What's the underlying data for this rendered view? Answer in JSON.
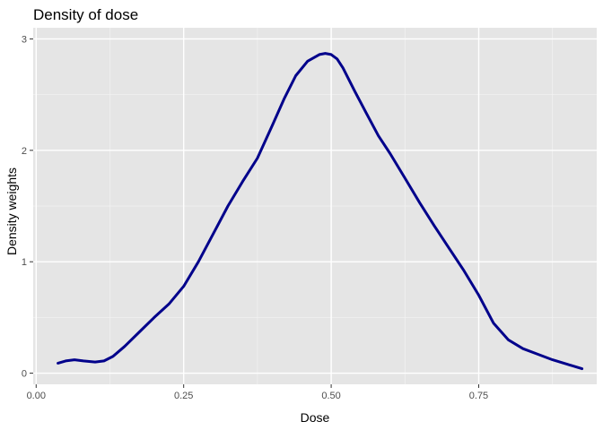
{
  "chart_data": {
    "type": "line",
    "title": "Density of dose",
    "xlabel": "Dose",
    "ylabel": "Density weights",
    "xlim": [
      -0.005,
      0.95
    ],
    "ylim": [
      -0.1,
      3.1
    ],
    "x_ticks": [
      0.0,
      0.25,
      0.5,
      0.75
    ],
    "x_tick_labels": [
      "0.00",
      "0.25",
      "0.50",
      "0.75"
    ],
    "y_ticks": [
      0,
      1,
      2,
      3
    ],
    "y_tick_labels": [
      "0",
      "1",
      "2",
      "3"
    ],
    "grid": true,
    "legend": "none",
    "colors": {
      "panel": "#e5e5e5",
      "grid_major": "#ffffff",
      "line": "#00008b"
    },
    "series": [
      {
        "x": [
          0.037,
          0.05,
          0.065,
          0.08,
          0.1,
          0.115,
          0.13,
          0.15,
          0.175,
          0.2,
          0.225,
          0.25,
          0.275,
          0.3,
          0.325,
          0.35,
          0.375,
          0.4,
          0.42,
          0.44,
          0.46,
          0.48,
          0.49,
          0.5,
          0.51,
          0.52,
          0.54,
          0.56,
          0.58,
          0.6,
          0.625,
          0.65,
          0.675,
          0.7,
          0.725,
          0.75,
          0.775,
          0.8,
          0.825,
          0.85,
          0.875,
          0.9,
          0.925
        ],
        "y": [
          0.09,
          0.11,
          0.12,
          0.11,
          0.1,
          0.11,
          0.15,
          0.24,
          0.37,
          0.5,
          0.62,
          0.78,
          1.0,
          1.25,
          1.5,
          1.72,
          1.93,
          2.22,
          2.46,
          2.67,
          2.8,
          2.86,
          2.87,
          2.86,
          2.82,
          2.74,
          2.53,
          2.33,
          2.13,
          1.97,
          1.75,
          1.53,
          1.32,
          1.12,
          0.92,
          0.7,
          0.45,
          0.3,
          0.22,
          0.17,
          0.12,
          0.08,
          0.04
        ]
      }
    ]
  }
}
